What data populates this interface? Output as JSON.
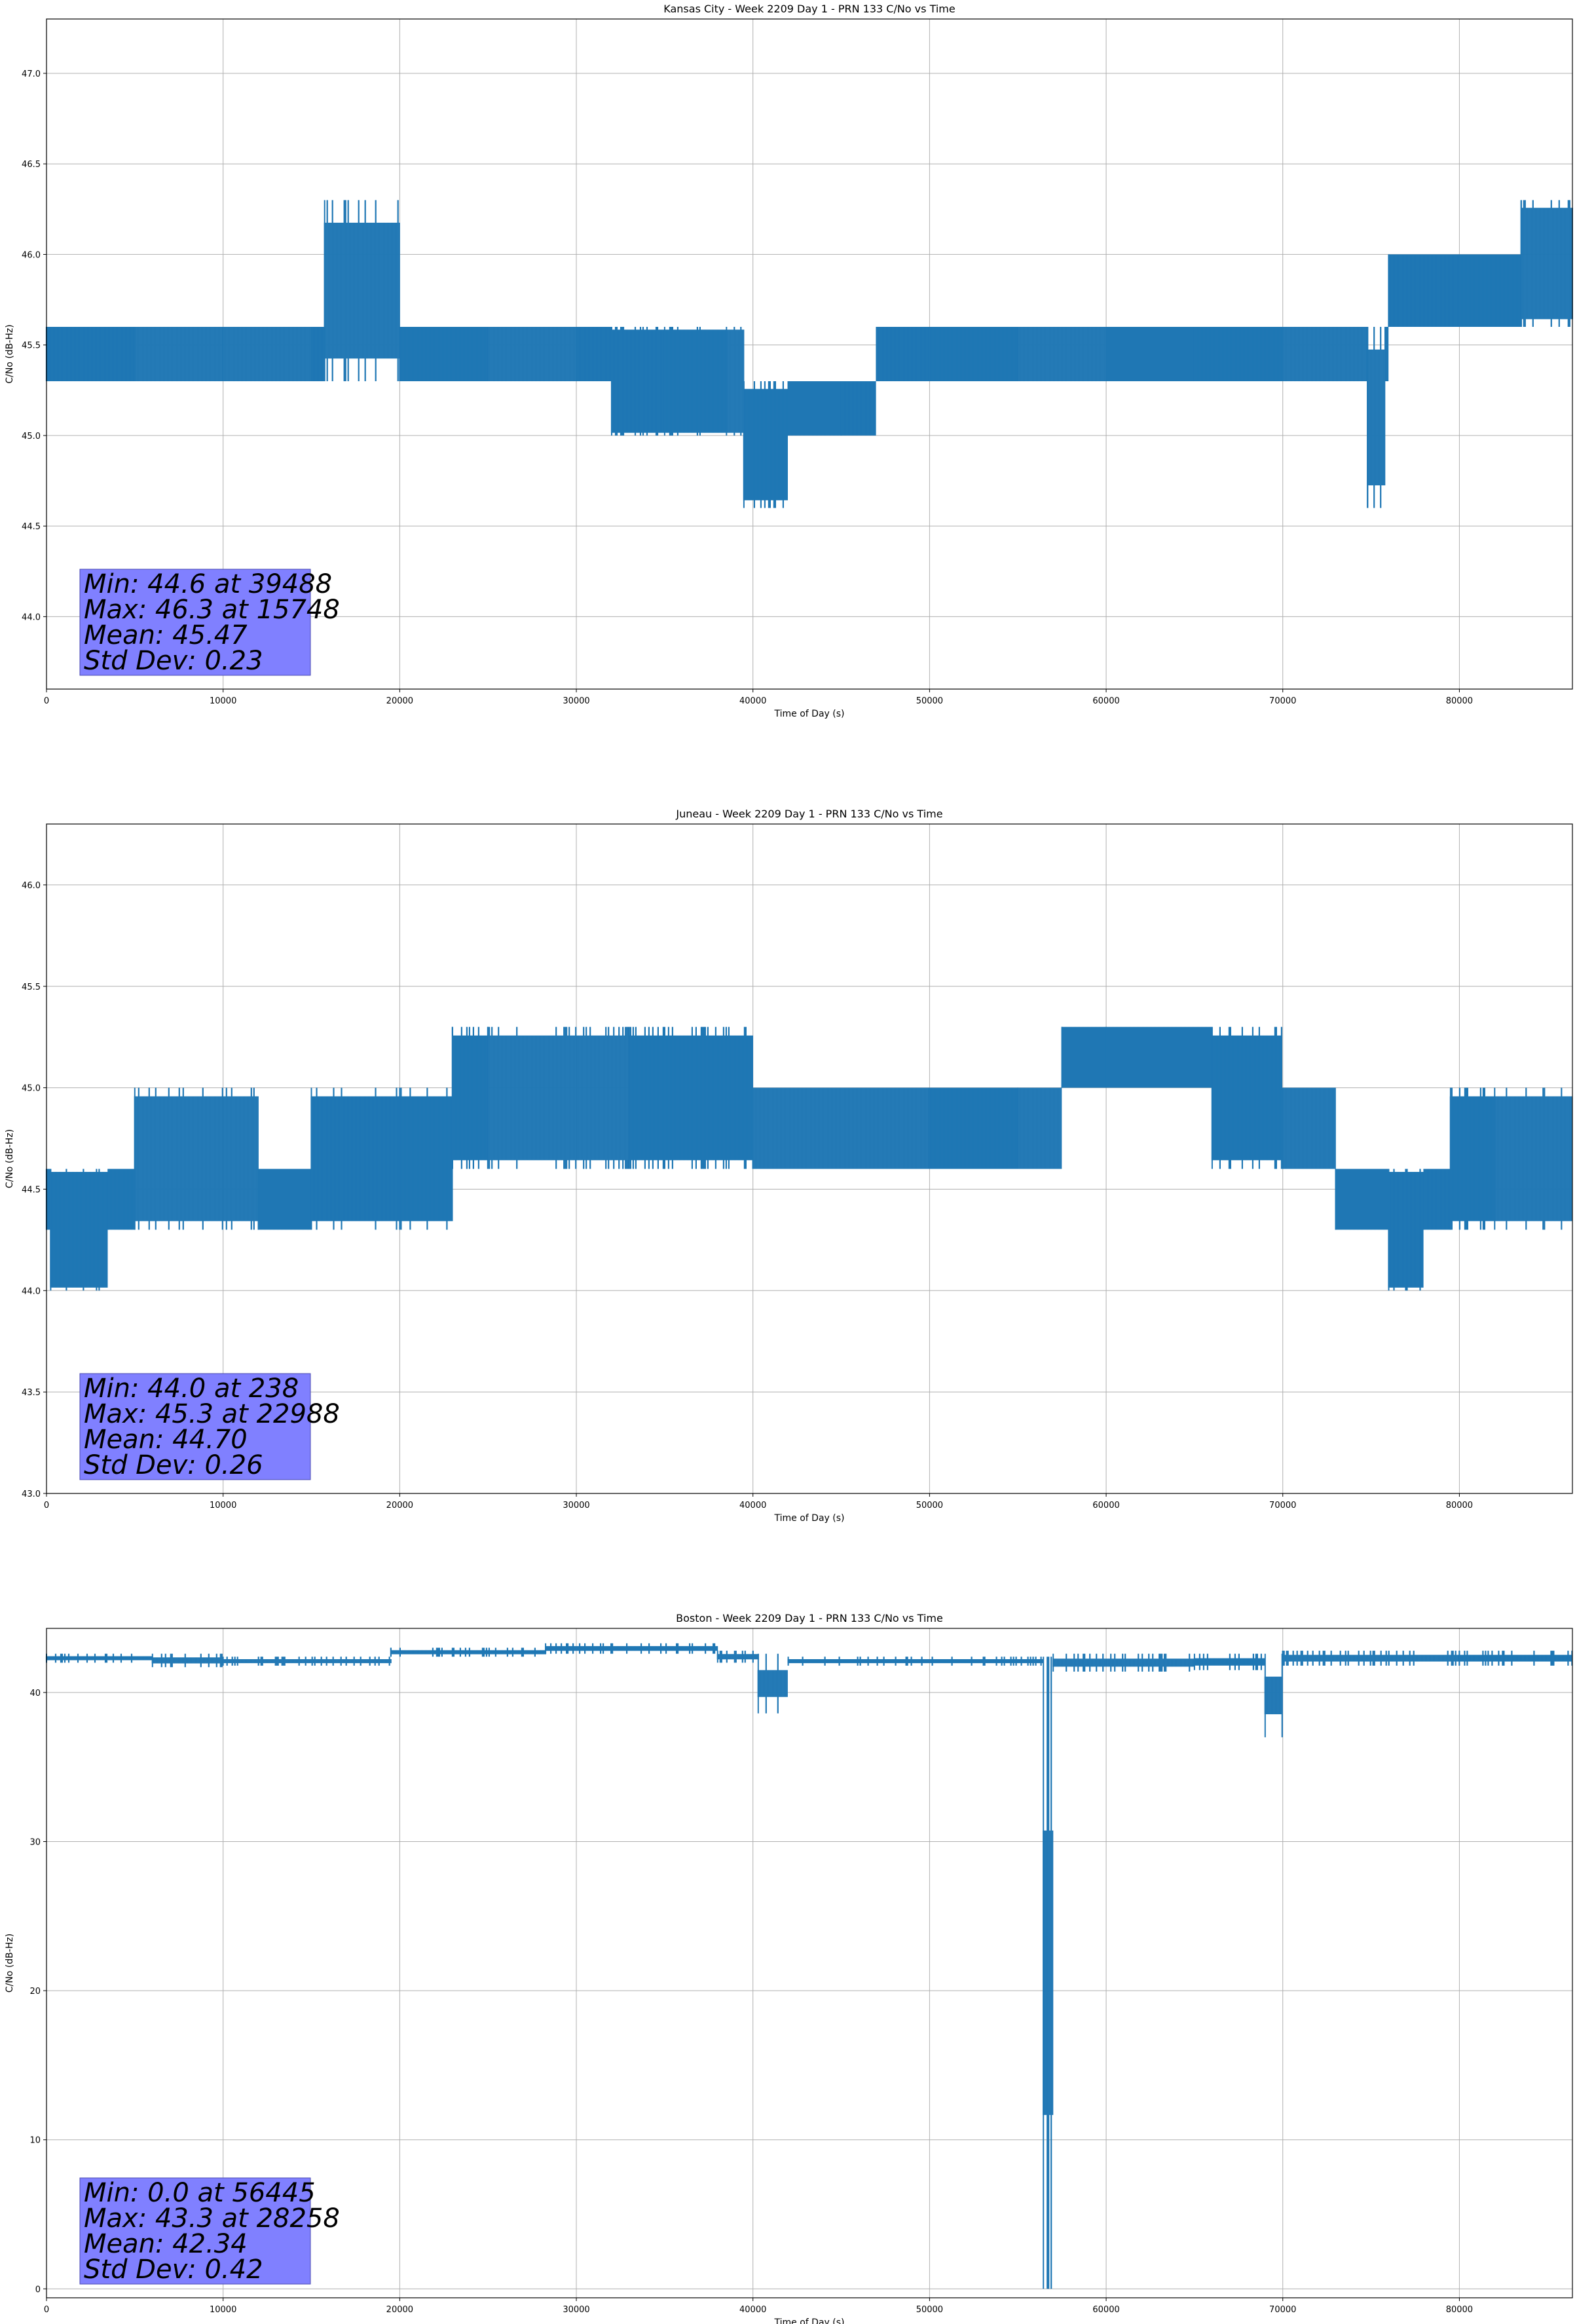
{
  "chart_data": [
    {
      "type": "line",
      "title": "Kansas City - Week 2209 Day 1 - PRN 133 C/No vs Time",
      "xlabel": "Time of Day (s)",
      "ylabel": "C/No (dB-Hz)",
      "xlim": [
        0,
        86400
      ],
      "ylim": [
        43.6,
        47.3
      ],
      "xticks": [
        0,
        10000,
        20000,
        30000,
        40000,
        50000,
        60000,
        70000,
        80000
      ],
      "yticks": [
        44.0,
        44.5,
        45.0,
        45.5,
        46.0,
        46.5,
        47.0
      ],
      "grid": true,
      "color": "#1f77b4",
      "series": [
        {
          "x": [
            0,
            5000,
            10000,
            15000,
            15748,
            20000,
            25000,
            30000,
            32000,
            35000,
            38500,
            39488,
            42000,
            45000,
            47000,
            50000,
            55000,
            60000,
            65000,
            70000,
            74800,
            75800,
            76000,
            80000,
            83500,
            86400
          ],
          "y_low": [
            45.3,
            45.3,
            45.3,
            45.3,
            45.3,
            45.3,
            45.3,
            45.3,
            45.0,
            45.0,
            45.0,
            44.6,
            45.0,
            45.0,
            45.3,
            45.3,
            45.3,
            45.3,
            45.3,
            45.3,
            44.6,
            45.3,
            45.6,
            45.6,
            45.6,
            45.6
          ],
          "y_high": [
            45.6,
            45.6,
            45.6,
            45.6,
            46.3,
            45.6,
            45.6,
            45.6,
            45.6,
            45.6,
            45.6,
            45.3,
            45.3,
            45.3,
            45.6,
            45.6,
            45.6,
            45.6,
            45.6,
            45.6,
            45.6,
            45.6,
            46.0,
            46.0,
            46.3,
            46.0
          ]
        }
      ],
      "stats": [
        "Min: 44.6 at 39488",
        "Max: 46.3 at 15748",
        "Mean: 45.47",
        "Std Dev: 0.23"
      ]
    },
    {
      "type": "line",
      "title": "Juneau - Week 2209 Day 1 - PRN 133 C/No vs Time",
      "xlabel": "Time of Day (s)",
      "ylabel": "C/No (dB-Hz)",
      "xlim": [
        0,
        86400
      ],
      "ylim": [
        43.0,
        46.3
      ],
      "xticks": [
        0,
        10000,
        20000,
        30000,
        40000,
        50000,
        60000,
        70000,
        80000
      ],
      "yticks": [
        43.0,
        43.5,
        44.0,
        44.5,
        45.0,
        45.5,
        46.0
      ],
      "grid": true,
      "color": "#1f77b4",
      "series": [
        {
          "x": [
            0,
            238,
            3500,
            5000,
            12000,
            15000,
            20000,
            22988,
            25000,
            33000,
            40000,
            50000,
            55000,
            57500,
            60000,
            66000,
            70000,
            73000,
            76000,
            78000,
            79500,
            82000,
            86400
          ],
          "y_low": [
            44.3,
            44.0,
            44.3,
            44.3,
            44.3,
            44.3,
            44.3,
            44.6,
            44.6,
            44.6,
            44.6,
            44.6,
            44.6,
            45.0,
            45.0,
            44.6,
            44.6,
            44.3,
            44.0,
            44.3,
            44.3,
            44.3,
            44.3
          ],
          "y_high": [
            44.6,
            44.6,
            44.6,
            45.0,
            44.6,
            45.0,
            45.0,
            45.3,
            45.3,
            45.3,
            45.0,
            45.0,
            45.0,
            45.3,
            45.3,
            45.3,
            45.0,
            44.6,
            44.6,
            44.6,
            45.0,
            45.0,
            45.0
          ]
        }
      ],
      "stats": [
        "Min: 44.0 at 238",
        "Max: 45.3 at 22988",
        "Mean: 44.70",
        "Std Dev: 0.26"
      ]
    },
    {
      "type": "line",
      "title": "Boston - Week 2209 Day 1 - PRN 133 C/No vs Time",
      "xlabel": "Time of Day (s)",
      "ylabel": "C/No (dB-Hz)",
      "xlim": [
        0,
        86400
      ],
      "ylim": [
        -0.6,
        44.3
      ],
      "xticks": [
        0,
        10000,
        20000,
        30000,
        40000,
        50000,
        60000,
        70000,
        80000
      ],
      "yticks": [
        0,
        10,
        20,
        30,
        40
      ],
      "grid": true,
      "color": "#1f77b4",
      "series": [
        {
          "x": [
            0,
            6000,
            10000,
            19500,
            28258,
            38000,
            40300,
            42000,
            56445,
            57000,
            65000,
            69000,
            70000,
            80000,
            86400
          ],
          "y_low": [
            42.0,
            41.7,
            41.8,
            42.4,
            42.6,
            42.0,
            38.6,
            41.8,
            0.0,
            41.4,
            41.5,
            37.0,
            41.8,
            41.8,
            41.8
          ],
          "y_high": [
            42.6,
            42.6,
            42.4,
            43.0,
            43.3,
            42.8,
            42.6,
            42.4,
            42.4,
            42.6,
            42.6,
            42.6,
            42.8,
            42.8,
            42.6
          ]
        }
      ],
      "stats": [
        "Min: 0.0 at 56445",
        "Max: 43.3 at 28258",
        "Mean: 42.34",
        "Std Dev: 0.42"
      ]
    }
  ]
}
